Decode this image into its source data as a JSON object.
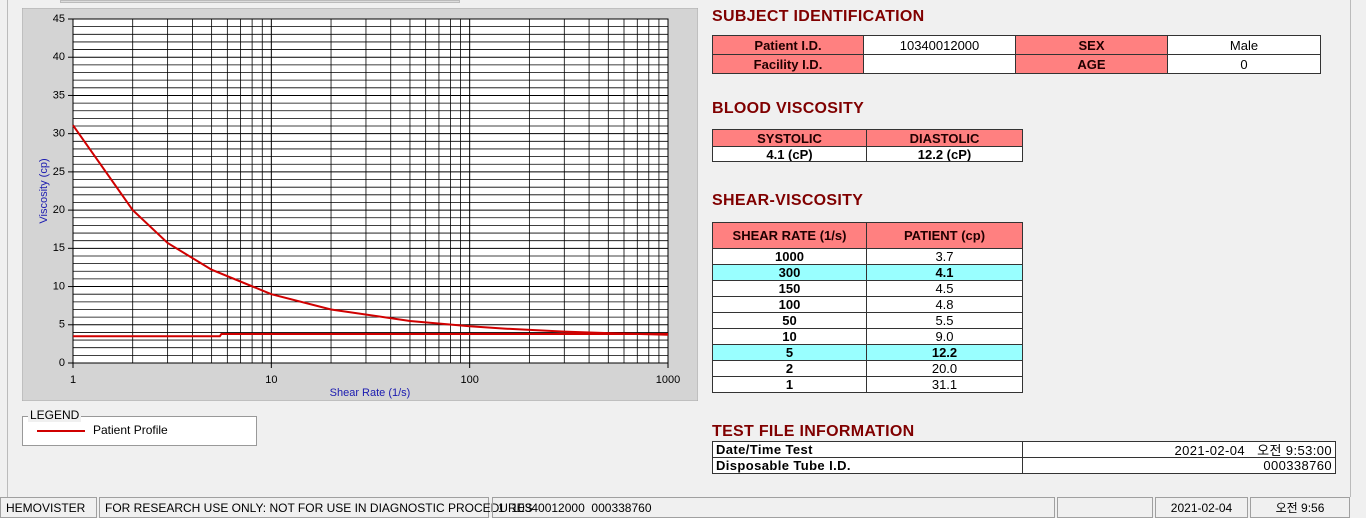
{
  "chart_data": {
    "type": "line",
    "xlabel": "Shear Rate (1/s)",
    "ylabel": "Viscosity (cp)",
    "xscale": "log",
    "xlim": [
      1,
      1000
    ],
    "xticks": [
      1,
      10,
      100,
      1000
    ],
    "xminorticks": [
      2,
      3,
      4,
      5,
      6,
      7,
      8,
      9,
      20,
      30,
      40,
      50,
      60,
      70,
      80,
      90,
      200,
      300,
      400,
      500,
      600,
      700,
      800,
      900
    ],
    "ylim": [
      0,
      45
    ],
    "yticks": [
      0,
      5,
      10,
      15,
      20,
      25,
      30,
      35,
      40,
      45
    ],
    "yminorticks": [
      1,
      2,
      3,
      4,
      6,
      7,
      8,
      9,
      11,
      12,
      13,
      14,
      16,
      17,
      18,
      19,
      21,
      22,
      23,
      24,
      26,
      27,
      28,
      29,
      31,
      32,
      33,
      34,
      36,
      37,
      38,
      39,
      41,
      42,
      43,
      44
    ],
    "grid": true,
    "series": [
      {
        "name": "Patient Profile",
        "color": "#d00000",
        "x": [
          1,
          2,
          3,
          5,
          10,
          20,
          50,
          100,
          150,
          300,
          500,
          1000
        ],
        "values": [
          31.1,
          20.0,
          15.7,
          12.2,
          9.0,
          7.0,
          5.5,
          4.8,
          4.5,
          4.1,
          3.9,
          3.7
        ]
      },
      {
        "color": "#d00000",
        "x": [
          1,
          5.5,
          5.6,
          1000
        ],
        "values": [
          3.5,
          3.5,
          3.8,
          3.8
        ]
      }
    ]
  },
  "legend_title": "LEGEND",
  "subject": {
    "title": "SUBJECT IDENTIFICATION",
    "rows": [
      [
        "Patient I.D.",
        "10340012000",
        "SEX",
        "Male"
      ],
      [
        "Facility I.D.",
        null,
        "AGE",
        "0"
      ]
    ]
  },
  "blood": {
    "title": "BLOOD VISCOSITY",
    "headers": [
      "SYSTOLIC",
      "DIASTOLIC"
    ],
    "values": [
      "4.1 (cP)",
      "12.2 (cP)"
    ]
  },
  "shear": {
    "title": "SHEAR-VISCOSITY",
    "headers": [
      "SHEAR RATE (1/s)",
      "PATIENT (cp)"
    ],
    "rows": [
      [
        "1000",
        "3.7"
      ],
      [
        "300",
        "4.1"
      ],
      [
        "150",
        "4.5"
      ],
      [
        "100",
        "4.8"
      ],
      [
        "50",
        "5.5"
      ],
      [
        "10",
        "9.0"
      ],
      [
        "5",
        "12.2"
      ],
      [
        "2",
        "20.0"
      ],
      [
        "1",
        "31.1"
      ]
    ],
    "highlight": [
      1,
      6
    ],
    "highlight_color": "#99ffff"
  },
  "test_file": {
    "title": "TEST FILE INFORMATION",
    "rows": [
      [
        "Date/Time Test",
        "2021-02-04   오전 9:53:00"
      ],
      [
        "Disposable Tube I.D.",
        "000338760"
      ]
    ]
  },
  "status_bar": [
    "HEMOVISTER",
    "FOR RESEARCH USE ONLY: NOT FOR USE IN DIAGNOSTIC PROCEDURES",
    "1  10340012000  000338760",
    "2021-02-04",
    "오전 9:56"
  ]
}
